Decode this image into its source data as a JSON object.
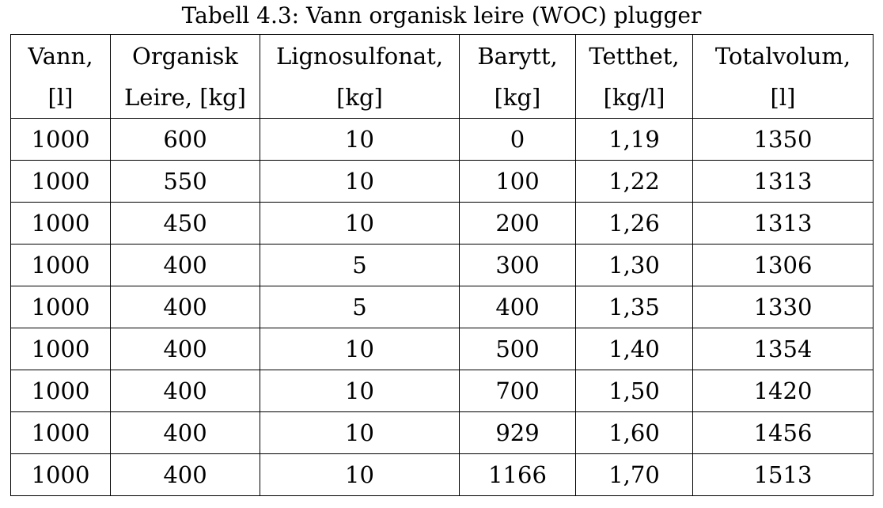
{
  "caption": "Tabell 4.3: Vann organisk leire (WOC) plugger",
  "headers": [
    {
      "line1": "Vann,",
      "line2": "[l]"
    },
    {
      "line1": "Organisk",
      "line2": "Leire, [kg]"
    },
    {
      "line1": "Lignosulfonat,",
      "line2": "[kg]"
    },
    {
      "line1": "Barytt,",
      "line2": "[kg]"
    },
    {
      "line1": "Tetthet,",
      "line2": "[kg/l]"
    },
    {
      "line1": "Totalvolum,",
      "line2": "[l]"
    }
  ],
  "rows": [
    [
      "1000",
      "600",
      "10",
      "0",
      "1,19",
      "1350"
    ],
    [
      "1000",
      "550",
      "10",
      "100",
      "1,22",
      "1313"
    ],
    [
      "1000",
      "450",
      "10",
      "200",
      "1,26",
      "1313"
    ],
    [
      "1000",
      "400",
      "5",
      "300",
      "1,30",
      "1306"
    ],
    [
      "1000",
      "400",
      "5",
      "400",
      "1,35",
      "1330"
    ],
    [
      "1000",
      "400",
      "10",
      "500",
      "1,40",
      "1354"
    ],
    [
      "1000",
      "400",
      "10",
      "700",
      "1,50",
      "1420"
    ],
    [
      "1000",
      "400",
      "10",
      "929",
      "1,60",
      "1456"
    ],
    [
      "1000",
      "400",
      "10",
      "1166",
      "1,70",
      "1513"
    ]
  ]
}
